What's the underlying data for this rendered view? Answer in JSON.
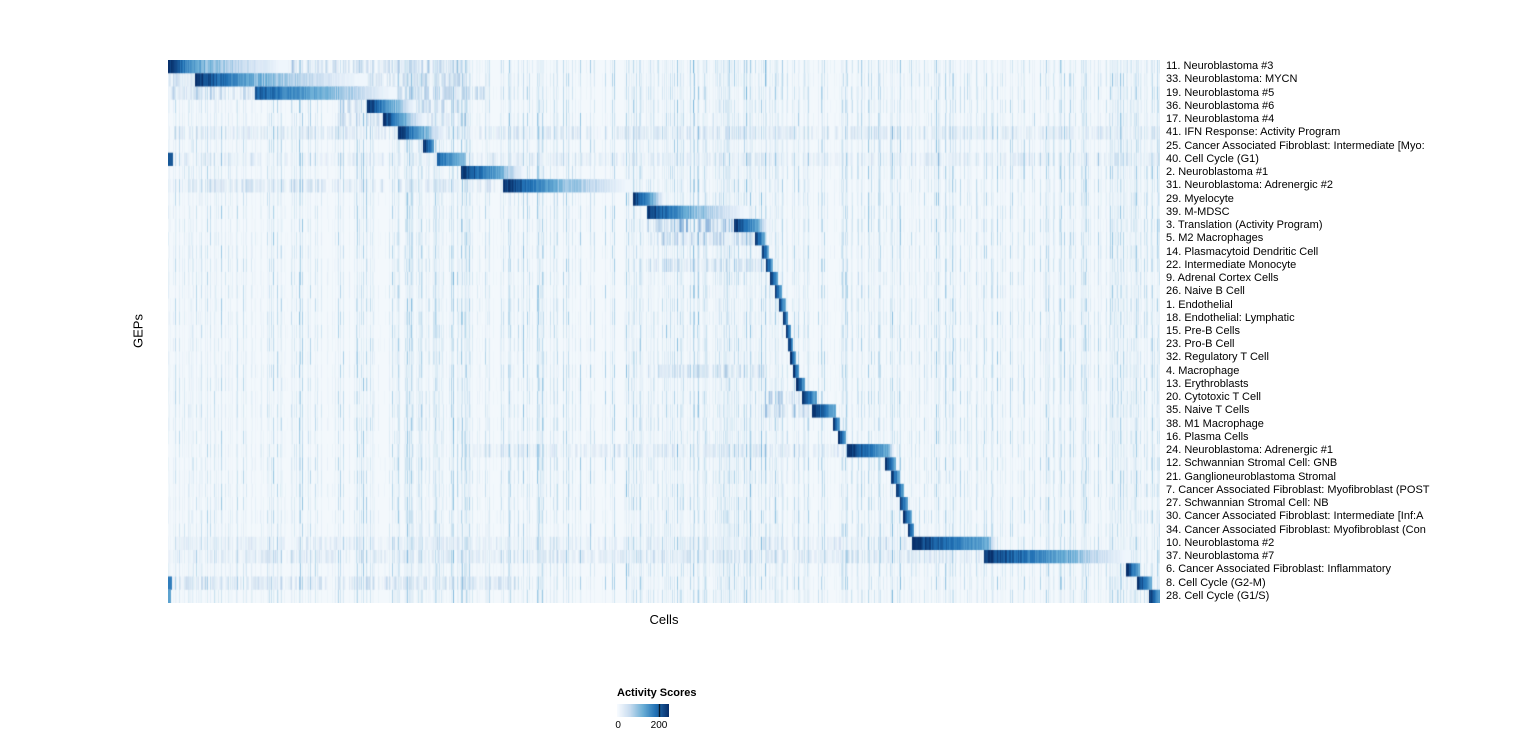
{
  "figure": {
    "ylabel": "GEPs",
    "xlabel": "Cells",
    "legend": {
      "title": "Activity Scores",
      "min_label": "0",
      "max_label": "200"
    }
  },
  "colors": {
    "scale_stops": [
      "#f7fbff",
      "#c6dbef",
      "#6baed6",
      "#2171b5",
      "#08306b"
    ],
    "background": "#ffffff",
    "heatmap_base": "#f3f8fc",
    "noise_streak": "#6baed6"
  },
  "chart_data": {
    "type": "heatmap",
    "title": "",
    "xlabel": "Cells",
    "ylabel": "GEPs",
    "n_rows": 41,
    "x_axis_note": "individual cells ordered by dominant GEP; no column tick labels shown",
    "colormap": "Blues",
    "colorbar": {
      "label": "Activity Scores",
      "min": 0,
      "max": 200
    },
    "legend_position": "bottom-left below plot",
    "noise_bands": [
      [
        0.225,
        0.305,
        0.5
      ],
      [
        0.46,
        0.62,
        0.55
      ],
      [
        0.72,
        0.76,
        0.45
      ],
      [
        0.95,
        1.0,
        0.55
      ],
      [
        0.0,
        0.04,
        0.3
      ]
    ],
    "rows": [
      {
        "label": "11. Neuroblastoma #3",
        "block": [
          0.0,
          0.03
        ],
        "tail": 0.12,
        "diffuse": [
          0.0,
          0.3,
          0.2
        ]
      },
      {
        "label": "33. Neuroblastoma: MYCN",
        "block": [
          0.028,
          0.085
        ],
        "tail": 0.2,
        "diffuse": [
          0.0,
          0.3,
          0.18
        ]
      },
      {
        "label": "19. Neuroblastoma #5",
        "block": [
          0.088,
          0.168
        ],
        "tail": 0.23,
        "strength": 0.85,
        "diffuse": [
          0.0,
          0.32,
          0.22
        ]
      },
      {
        "label": "36. Neuroblastoma #6",
        "block": [
          0.201,
          0.226
        ],
        "tail": 0.25,
        "diffuse": [
          0.17,
          0.3,
          0.18
        ]
      },
      {
        "label": "17. Neuroblastoma #4",
        "block": [
          0.217,
          0.237
        ],
        "tail": 0.26,
        "diffuse": [
          0.17,
          0.3,
          0.15
        ]
      },
      {
        "label": "41. IFN Response: Activity Program",
        "block": [
          0.232,
          0.257
        ],
        "tail": 0.28,
        "diffuse": [
          0.0,
          1.0,
          0.1
        ]
      },
      {
        "label": "25. Cancer Associated Fibroblast: Intermediate [Myo:",
        "block": [
          0.258,
          0.268
        ]
      },
      {
        "label": "40. Cell Cycle (G1)",
        "block": [
          0.272,
          0.3
        ],
        "strength": 0.8,
        "diffuse": [
          0.0,
          1.0,
          0.07
        ],
        "extra": [
          [
            0.0,
            0.005,
            0.85
          ]
        ]
      },
      {
        "label": "2. Neuroblastoma #1",
        "block": [
          0.296,
          0.336
        ],
        "tail": 0.36
      },
      {
        "label": "31. Neuroblastoma: Adrenergic #2",
        "block": [
          0.338,
          0.392
        ],
        "tail": 0.467,
        "diffuse": [
          0.0,
          0.33,
          0.12
        ]
      },
      {
        "label": "29. Myelocyte",
        "block": [
          0.469,
          0.488
        ],
        "tail": 0.5
      },
      {
        "label": "39. M-MDSC",
        "block": [
          0.483,
          0.525
        ],
        "tail": 0.585
      },
      {
        "label": "3. Translation (Activity Program)",
        "block": [
          0.571,
          0.595
        ],
        "tail": 0.605,
        "diffuse": [
          0.483,
          0.571,
          0.45
        ]
      },
      {
        "label": "5. M2 Macrophages",
        "block": [
          0.592,
          0.601
        ],
        "diffuse": [
          0.483,
          0.59,
          0.2
        ]
      },
      {
        "label": "14. Plasmacytoid Dendritic Cell",
        "block": [
          0.599,
          0.605
        ]
      },
      {
        "label": "22. Intermediate Monocyte",
        "block": [
          0.603,
          0.609
        ],
        "diffuse": [
          0.483,
          0.6,
          0.15
        ]
      },
      {
        "label": "9. Adrenal Cortex Cells",
        "block": [
          0.607,
          0.614
        ]
      },
      {
        "label": "26. Naive B Cell",
        "block": [
          0.612,
          0.618
        ]
      },
      {
        "label": "1. Endothelial",
        "block": [
          0.616,
          0.622
        ]
      },
      {
        "label": "18. Endothelial: Lymphatic",
        "block": [
          0.62,
          0.625
        ]
      },
      {
        "label": "15. Pre-B Cells",
        "block": [
          0.623,
          0.628
        ]
      },
      {
        "label": "23. Pro-B Cell",
        "block": [
          0.626,
          0.63
        ]
      },
      {
        "label": "32. Regulatory T Cell",
        "block": [
          0.628,
          0.633
        ]
      },
      {
        "label": "4. Macrophage",
        "block": [
          0.631,
          0.636
        ],
        "diffuse": [
          0.483,
          0.6,
          0.15
        ]
      },
      {
        "label": "13. Erythroblasts",
        "block": [
          0.634,
          0.642
        ]
      },
      {
        "label": "20. Cytotoxic T Cell",
        "block": [
          0.64,
          0.654
        ],
        "diffuse": [
          0.6,
          0.64,
          0.18
        ]
      },
      {
        "label": "35. Naive T Cells",
        "block": [
          0.65,
          0.673
        ],
        "diffuse": [
          0.6,
          0.65,
          0.2
        ]
      },
      {
        "label": "38. M1 Macrophage",
        "block": [
          0.671,
          0.677
        ]
      },
      {
        "label": "16. Plasma Cells",
        "block": [
          0.676,
          0.683
        ]
      },
      {
        "label": "24. Neuroblastoma: Adrenergic #1",
        "block": [
          0.685,
          0.726
        ],
        "tail": 0.732,
        "diffuse": [
          0.3,
          0.68,
          0.08
        ]
      },
      {
        "label": "12. Schwannian Stromal Cell: GNB",
        "block": [
          0.723,
          0.733
        ]
      },
      {
        "label": "21. Ganglioneuroblastoma Stromal",
        "block": [
          0.729,
          0.737
        ]
      },
      {
        "label": "7. Cancer Associated Fibroblast: Myofibroblast (POST",
        "block": [
          0.734,
          0.741
        ]
      },
      {
        "label": "27. Schwannian Stromal Cell: NB",
        "block": [
          0.738,
          0.745
        ]
      },
      {
        "label": "30. Cancer Associated Fibroblast: Intermediate [Inf:A",
        "block": [
          0.741,
          0.749
        ]
      },
      {
        "label": "34. Cancer Associated Fibroblast: Myofibroblast (Con",
        "block": [
          0.746,
          0.752
        ]
      },
      {
        "label": "10. Neuroblastoma #2",
        "block": [
          0.751,
          0.827
        ],
        "tail": 0.835,
        "diffuse": [
          0.0,
          0.75,
          0.07
        ]
      },
      {
        "label": "37. Neuroblastoma #7",
        "block": [
          0.823,
          0.905
        ],
        "tail": 0.97,
        "diffuse": [
          0.0,
          0.82,
          0.1
        ]
      },
      {
        "label": "6. Cancer Associated Fibroblast: Inflammatory",
        "block": [
          0.966,
          0.979
        ]
      },
      {
        "label": "8. Cell Cycle (G2-M)",
        "block": [
          0.977,
          0.991
        ],
        "diffuse": [
          0.0,
          0.35,
          0.15
        ],
        "extra": [
          [
            0.0,
            0.004,
            0.7
          ]
        ]
      },
      {
        "label": "28. Cell Cycle (G1/S)",
        "block": [
          0.989,
          1.0
        ],
        "extra": [
          [
            0.0,
            0.003,
            0.55
          ]
        ]
      }
    ]
  }
}
